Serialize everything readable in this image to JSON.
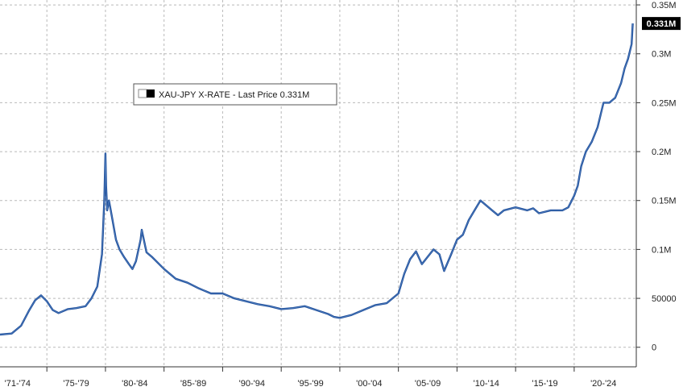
{
  "chart_data": {
    "type": "line",
    "title": "",
    "xlabel": "",
    "ylabel": "",
    "legend": {
      "label": "XAU-JPY X-RATE - Last Price 0.331M",
      "placement": "top-left"
    },
    "last_price_label": "0.331M",
    "colors": {
      "series": "#1f4e99",
      "highlight": "#6f9fd8",
      "tag": "#000000",
      "grid": "#b9b9b9"
    },
    "xlim": [
      1971,
      2025.3
    ],
    "ylim": [
      -20000,
      355000
    ],
    "x_tick_labels": [
      {
        "label": "'71-'74",
        "x": 1972.5
      },
      {
        "label": "'75-'79",
        "x": 1977.5
      },
      {
        "label": "'80-'84",
        "x": 1982.5
      },
      {
        "label": "'85-'89",
        "x": 1987.5
      },
      {
        "label": "'90-'94",
        "x": 1992.5
      },
      {
        "label": "'95-'99",
        "x": 1997.5
      },
      {
        "label": "'00-'04",
        "x": 2002.5
      },
      {
        "label": "'05-'09",
        "x": 2007.5
      },
      {
        "label": "'10-'14",
        "x": 2012.5
      },
      {
        "label": "'15-'19",
        "x": 2017.5
      },
      {
        "label": "'20-'24",
        "x": 2022.5
      }
    ],
    "x_gridlines": [
      1975,
      1980,
      1985,
      1990,
      1995,
      2000,
      2005,
      2010,
      2015,
      2020
    ],
    "y_ticks": [
      {
        "label": "0",
        "value": 0
      },
      {
        "label": "50000",
        "value": 50000
      },
      {
        "label": "0.1M",
        "value": 100000
      },
      {
        "label": "0.15M",
        "value": 150000
      },
      {
        "label": "0.2M",
        "value": 200000
      },
      {
        "label": "0.25M",
        "value": 250000
      },
      {
        "label": "0.3M",
        "value": 300000
      },
      {
        "label": "0.35M",
        "value": 350000
      }
    ],
    "grid": true,
    "series": [
      {
        "x": [
          1971.0,
          1972.0,
          1972.8,
          1973.5,
          1974.0,
          1974.5,
          1975.0,
          1975.5,
          1976.0,
          1976.8,
          1977.5,
          1978.3,
          1978.8,
          1979.3,
          1979.7,
          1979.9,
          1980.0,
          1980.05,
          1980.15,
          1980.3,
          1980.6,
          1980.9,
          1981.2,
          1981.6,
          1982.0,
          1982.3,
          1982.6,
          1983.0,
          1983.1,
          1983.5,
          1984.0,
          1985.0,
          1986.0,
          1987.0,
          1988.0,
          1989.0,
          1990.0,
          1991.0,
          1992.0,
          1993.0,
          1994.0,
          1995.0,
          1996.0,
          1997.0,
          1998.0,
          1999.0,
          1999.5,
          2000.0,
          2001.0,
          2002.0,
          2003.0,
          2004.0,
          2005.0,
          2005.5,
          2006.0,
          2006.5,
          2007.0,
          2008.0,
          2008.5,
          2008.9,
          2009.5,
          2010.0,
          2010.5,
          2011.0,
          2011.5,
          2012.0,
          2013.0,
          2013.5,
          2014.0,
          2015.0,
          2016.0,
          2016.5,
          2017.0,
          2018.0,
          2019.0,
          2019.5,
          2020.0,
          2020.3,
          2020.6,
          2021.0,
          2021.5,
          2022.0,
          2022.5,
          2023.0,
          2023.5,
          2024.0,
          2024.3,
          2024.6,
          2024.9,
          2025.0
        ],
        "y": [
          13000,
          14000,
          22000,
          38000,
          48000,
          53000,
          47000,
          38000,
          35000,
          39000,
          40000,
          42000,
          50000,
          62000,
          95000,
          150000,
          198000,
          165000,
          140000,
          150000,
          130000,
          110000,
          100000,
          92000,
          85000,
          80000,
          88000,
          110000,
          120000,
          97000,
          92000,
          80000,
          70000,
          66000,
          60000,
          55000,
          55000,
          50000,
          47000,
          44000,
          42000,
          39000,
          40000,
          42000,
          38000,
          34000,
          31000,
          30000,
          33000,
          38000,
          43000,
          45000,
          55000,
          75000,
          90000,
          98000,
          85000,
          100000,
          95000,
          78000,
          95000,
          110000,
          115000,
          130000,
          140000,
          150000,
          140000,
          135000,
          140000,
          143000,
          140000,
          142000,
          137000,
          140000,
          140000,
          143000,
          155000,
          165000,
          185000,
          200000,
          210000,
          225000,
          250000,
          250000,
          255000,
          270000,
          285000,
          295000,
          310000,
          331000
        ]
      }
    ]
  }
}
